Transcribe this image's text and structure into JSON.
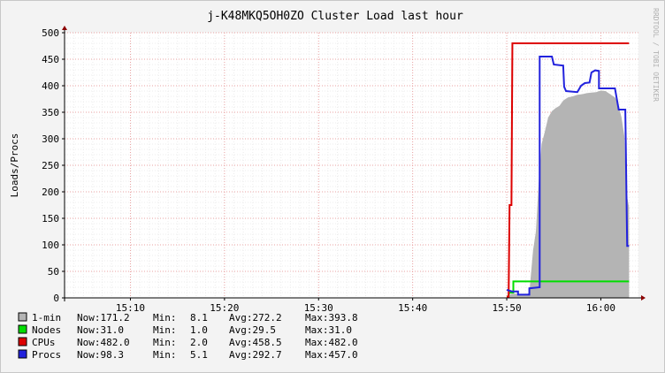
{
  "chart_data": {
    "type": "line",
    "title": "j-K48MKQ5OH0ZO Cluster Load last hour",
    "ylabel": "Loads/Procs",
    "watermark": "RRDTOOL / TOBI OETIKER",
    "ylim": [
      0,
      500
    ],
    "yticks": [
      0,
      50,
      100,
      150,
      200,
      250,
      300,
      350,
      400,
      450,
      500
    ],
    "xlim": [
      "15:03",
      "16:04"
    ],
    "xticks": [
      "15:10",
      "15:20",
      "15:30",
      "15:40",
      "15:50",
      "16:00"
    ],
    "grid": true,
    "legend_position": "bottom-left",
    "series": [
      {
        "name": "1-min",
        "type": "area",
        "color": "#b4b4b4",
        "stats": {
          "now": "171.2",
          "min": "8.1",
          "avg": "272.2",
          "max": "393.8"
        },
        "points": [
          [
            "15:50",
            0
          ],
          [
            "15:50.5",
            8
          ],
          [
            "15:51",
            8
          ],
          [
            "15:52",
            5
          ],
          [
            "15:52.4",
            10
          ],
          [
            "15:52.8",
            90
          ],
          [
            "15:53.1",
            125
          ],
          [
            "15:53.4",
            220
          ],
          [
            "15:53.7",
            290
          ],
          [
            "15:54",
            310
          ],
          [
            "15:54.4",
            340
          ],
          [
            "15:54.8",
            352
          ],
          [
            "15:55.2",
            358
          ],
          [
            "15:55.6",
            362
          ],
          [
            "15:56",
            372
          ],
          [
            "15:56.5",
            378
          ],
          [
            "15:57",
            380
          ],
          [
            "15:57.5",
            383
          ],
          [
            "15:58",
            384
          ],
          [
            "15:58.5",
            386
          ],
          [
            "15:59",
            387
          ],
          [
            "15:59.5",
            388
          ],
          [
            "16:00",
            391
          ],
          [
            "16:00.5",
            390
          ],
          [
            "16:01",
            384
          ],
          [
            "16:01.5",
            378
          ],
          [
            "16:01.8",
            368
          ],
          [
            "16:02.2",
            340
          ],
          [
            "16:02.5",
            305
          ],
          [
            "16:02.7",
            200
          ],
          [
            "16:03",
            171
          ]
        ]
      },
      {
        "name": "Nodes",
        "type": "line",
        "color": "#00dd00",
        "stats": {
          "now": "31.0",
          "min": "1.0",
          "avg": "29.5",
          "max": "31.0"
        },
        "points": [
          [
            "15:50.1",
            1
          ],
          [
            "15:50.3",
            10
          ],
          [
            "15:50.7",
            10
          ],
          [
            "15:50.7",
            31
          ],
          [
            "16:03",
            31
          ]
        ]
      },
      {
        "name": "CPUs",
        "type": "line",
        "color": "#dd0000",
        "stats": {
          "now": "482.0",
          "min": "2.0",
          "avg": "458.5",
          "max": "482.0"
        },
        "points": [
          [
            "15:50",
            2
          ],
          [
            "15:50.2",
            2
          ],
          [
            "15:50.3",
            175
          ],
          [
            "15:50.5",
            175
          ],
          [
            "15:50.6",
            480
          ],
          [
            "16:03",
            480
          ]
        ]
      },
      {
        "name": "Procs",
        "type": "line",
        "color": "#2222dd",
        "stats": {
          "now": "98.3",
          "min": "5.1",
          "avg": "292.7",
          "max": "457.0"
        },
        "points": [
          [
            "15:50",
            15
          ],
          [
            "15:50.6",
            12
          ],
          [
            "15:51.2",
            12
          ],
          [
            "15:51.2",
            6
          ],
          [
            "15:52.4",
            6
          ],
          [
            "15:52.4",
            18
          ],
          [
            "15:53.5",
            20
          ],
          [
            "15:53.5",
            455
          ],
          [
            "15:54.8",
            455
          ],
          [
            "15:55",
            440
          ],
          [
            "15:56",
            438
          ],
          [
            "15:56.1",
            398
          ],
          [
            "15:56.3",
            390
          ],
          [
            "15:57.5",
            388
          ],
          [
            "15:57.9",
            400
          ],
          [
            "15:58.3",
            405
          ],
          [
            "15:58.8",
            406
          ],
          [
            "15:59",
            425
          ],
          [
            "15:59.4",
            429
          ],
          [
            "15:59.8",
            428
          ],
          [
            "15:59.8",
            395
          ],
          [
            "16:01.5",
            395
          ],
          [
            "16:01.9",
            355
          ],
          [
            "16:02.6",
            355
          ],
          [
            "16:02.8",
            98
          ],
          [
            "16:03",
            98
          ]
        ]
      }
    ]
  },
  "legend_labels": {
    "now": "Now:",
    "min": "Min:",
    "avg": "Avg:",
    "max": "Max:"
  }
}
